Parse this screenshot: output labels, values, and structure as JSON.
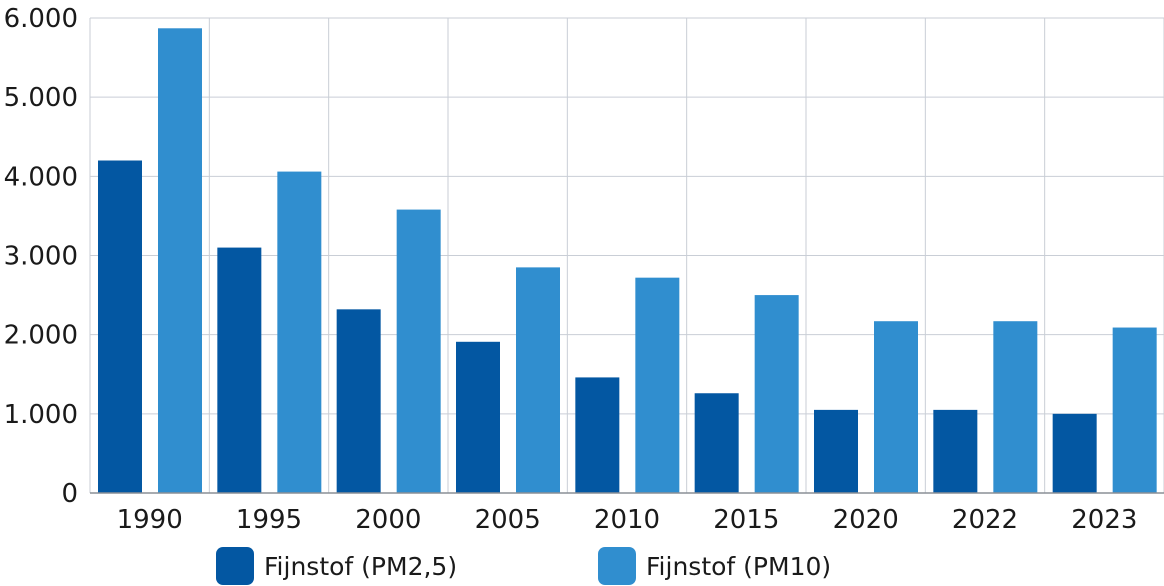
{
  "chart_data": {
    "type": "bar",
    "categories": [
      "1990",
      "1995",
      "2000",
      "2005",
      "2010",
      "2015",
      "2020",
      "2022",
      "2023"
    ],
    "series": [
      {
        "name": "Fijnstof (PM2,5)",
        "color": "#0357a2",
        "values": [
          4200,
          3100,
          2320,
          1910,
          1460,
          1260,
          1050,
          1050,
          1000
        ]
      },
      {
        "name": "Fijnstof (PM10)",
        "color": "#308ecf",
        "values": [
          5870,
          4060,
          3580,
          2850,
          2720,
          2500,
          2170,
          2170,
          2090
        ]
      }
    ],
    "ylim": [
      0,
      6000
    ],
    "yticks": [
      "0",
      "1.000",
      "2.000",
      "3.000",
      "4.000",
      "5.000",
      "6.000"
    ],
    "title": "",
    "xlabel": "",
    "ylabel": "",
    "grid": true,
    "legend_position": "bottom"
  }
}
